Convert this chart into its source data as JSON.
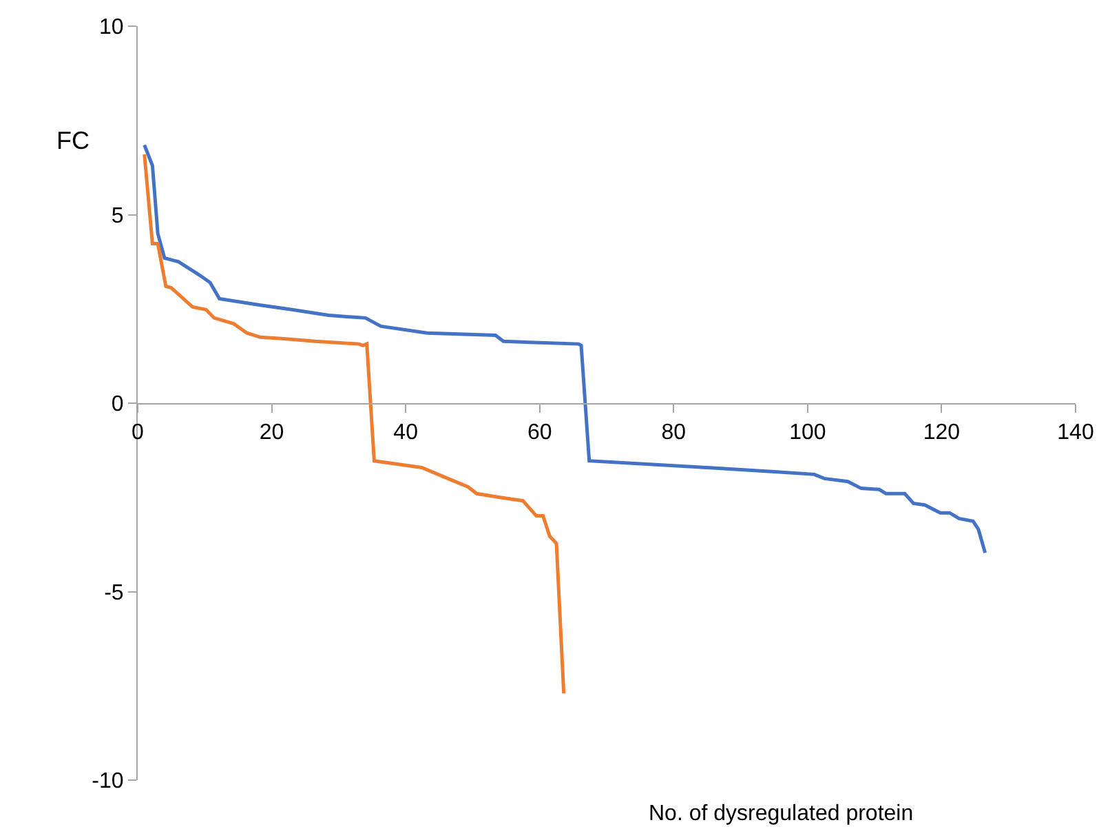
{
  "chart_data": {
    "type": "line",
    "xlabel": "No. of dysregulated protein",
    "ylabel": "FC",
    "xlim": [
      0,
      140
    ],
    "xticks": [
      0,
      20,
      40,
      60,
      80,
      100,
      120,
      140
    ],
    "ylim": [
      -10,
      10
    ],
    "yticks": [
      -10,
      -5,
      0,
      5,
      10
    ],
    "marker": "none",
    "line_style": "solid",
    "series": [
      {
        "color": "#4472c4",
        "x": [
          1,
          2.2,
          3,
          4,
          6.1,
          9.2,
          10.8,
          12.2,
          18.3,
          23,
          28.5,
          34,
          36.3,
          43.2,
          53.4,
          54.6,
          65.8,
          66.2,
          67.4,
          85,
          95,
          101,
          102.5,
          106,
          108,
          110.7,
          111.7,
          114.5,
          115.8,
          117.5,
          119.8,
          121.2,
          122.6,
          124.7,
          125.5,
          126.5
        ],
        "values": [
          6.85,
          6.3,
          4.5,
          3.85,
          3.75,
          3.4,
          3.2,
          2.77,
          2.6,
          2.48,
          2.33,
          2.26,
          2.04,
          1.86,
          1.8,
          1.64,
          1.57,
          1.53,
          -1.53,
          -1.71,
          -1.82,
          -1.89,
          -2.0,
          -2.08,
          -2.26,
          -2.29,
          -2.4,
          -2.4,
          -2.66,
          -2.7,
          -2.91,
          -2.91,
          -3.06,
          -3.13,
          -3.35,
          -3.97
        ]
      },
      {
        "color": "#ed7d31",
        "x": [
          1,
          2.2,
          3,
          4.2,
          5,
          8.2,
          10.2,
          11.4,
          14.3,
          16.3,
          18.3,
          21.8,
          26.5,
          33,
          33.6,
          34.2,
          35.3,
          42.4,
          46.3,
          49.3,
          50.6,
          54.4,
          57.5,
          59.5,
          60.5,
          61.5,
          62.5,
          63.6
        ],
        "values": [
          6.6,
          4.23,
          4.23,
          3.1,
          3.06,
          2.55,
          2.48,
          2.26,
          2.11,
          1.86,
          1.75,
          1.71,
          1.64,
          1.57,
          1.53,
          1.57,
          -1.53,
          -1.71,
          -2.0,
          -2.22,
          -2.4,
          -2.51,
          -2.59,
          -2.99,
          -2.99,
          -3.53,
          -3.72,
          -7.7
        ]
      }
    ]
  }
}
